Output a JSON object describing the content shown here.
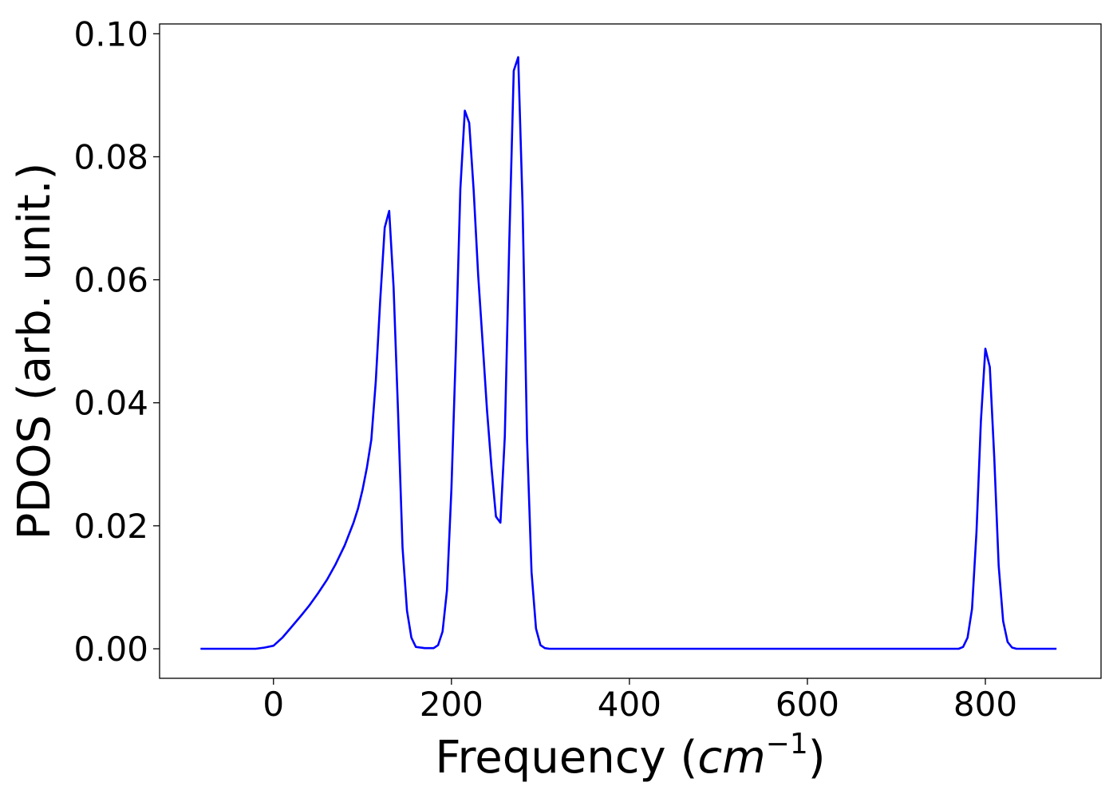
{
  "chart_data": {
    "type": "line",
    "title": "",
    "xlabel": "Frequency (",
    "xlabel_unit": "cm",
    "xlabel_exponent": "−1",
    "xlabel_close": ")",
    "ylabel": "PDOS (arb. unit.)",
    "xlim": [
      -128,
      930
    ],
    "ylim": [
      -0.0048,
      0.1016
    ],
    "xticks": [
      0,
      200,
      400,
      600,
      800
    ],
    "xtick_labels": [
      "0",
      "200",
      "400",
      "600",
      "800"
    ],
    "yticks": [
      0.0,
      0.02,
      0.04,
      0.06,
      0.08,
      0.1
    ],
    "ytick_labels": [
      "0.00",
      "0.02",
      "0.04",
      "0.06",
      "0.08",
      "0.10"
    ],
    "grid": false,
    "legend": "none",
    "series": [
      {
        "color": "#0000ff",
        "x": [
          -82,
          -20,
          -10,
          0,
          10,
          20,
          30,
          40,
          50,
          60,
          70,
          80,
          90,
          95,
          100,
          105,
          110,
          115,
          120,
          125,
          130,
          135,
          140,
          145,
          150,
          155,
          160,
          170,
          180,
          185,
          190,
          195,
          200,
          205,
          210,
          215,
          220,
          225,
          230,
          235,
          240,
          245,
          250,
          255,
          260,
          265,
          270,
          275,
          280,
          285,
          290,
          295,
          300,
          305,
          310,
          400,
          600,
          770,
          775,
          780,
          785,
          790,
          795,
          800,
          805,
          810,
          815,
          820,
          825,
          830,
          835,
          880
        ],
        "y": [
          0.0,
          0.0,
          0.0002,
          0.0005,
          0.0018,
          0.0035,
          0.0052,
          0.007,
          0.009,
          0.0112,
          0.0138,
          0.0168,
          0.0205,
          0.0228,
          0.0258,
          0.0295,
          0.034,
          0.0435,
          0.0568,
          0.0685,
          0.0712,
          0.0588,
          0.0385,
          0.0165,
          0.0062,
          0.0018,
          0.0003,
          0.0001,
          0.0001,
          0.0006,
          0.0028,
          0.0095,
          0.026,
          0.0488,
          0.0748,
          0.0875,
          0.0855,
          0.0745,
          0.0608,
          0.0498,
          0.0388,
          0.0295,
          0.0215,
          0.0205,
          0.0345,
          0.066,
          0.094,
          0.0962,
          0.072,
          0.034,
          0.0125,
          0.0033,
          0.0006,
          0.0001,
          0.0,
          0.0,
          0.0,
          0.0,
          0.0003,
          0.0018,
          0.0065,
          0.019,
          0.037,
          0.0488,
          0.0458,
          0.031,
          0.0135,
          0.0045,
          0.0011,
          0.0002,
          0.0,
          0.0
        ]
      }
    ]
  }
}
